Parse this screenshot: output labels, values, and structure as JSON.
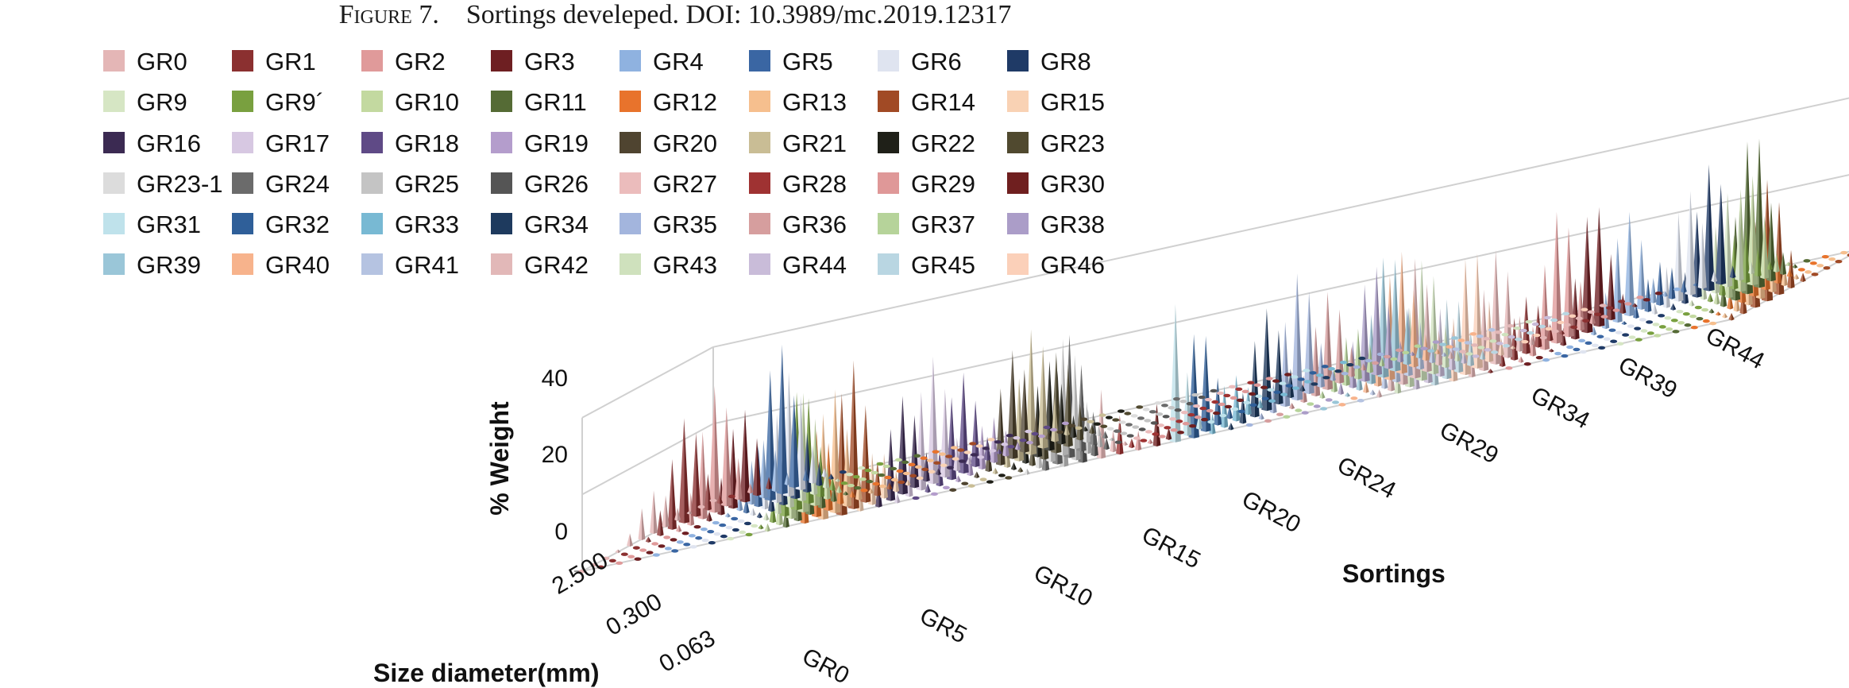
{
  "caption": {
    "figure_label": "Figure 7.",
    "text": "Sortings develeped. DOI: 10.3989/mc.2019.12317"
  },
  "chart_data": {
    "type": "bar3d",
    "title": "",
    "zlabel": "% Weight",
    "xlabel": "Sortings",
    "ylabel": "Size diameter(mm)",
    "zlim": [
      0,
      40
    ],
    "z_ticks": [
      "40",
      "20",
      "0"
    ],
    "size_ticks": [
      "2.500",
      "0.300",
      "0.063"
    ],
    "sorting_ticks": [
      "GR0",
      "GR5",
      "GR10",
      "GR15",
      "GR20",
      "GR24",
      "GR29",
      "GR34",
      "GR39",
      "GR44"
    ],
    "legend_placement": "top-left",
    "series": [
      {
        "name": "GR0",
        "color": "#e4b6b6"
      },
      {
        "name": "GR1",
        "color": "#8b3030"
      },
      {
        "name": "GR2",
        "color": "#e09a9a"
      },
      {
        "name": "GR3",
        "color": "#6e1f22"
      },
      {
        "name": "GR4",
        "color": "#8fb2e0"
      },
      {
        "name": "GR5",
        "color": "#3a66a3"
      },
      {
        "name": "GR6",
        "color": "#dfe4f0"
      },
      {
        "name": "GR8",
        "color": "#1f3a66"
      },
      {
        "name": "GR9",
        "color": "#d6e6c4"
      },
      {
        "name": "GR9´",
        "color": "#79a03f"
      },
      {
        "name": "GR10",
        "color": "#c3d9a0"
      },
      {
        "name": "GR11",
        "color": "#556b35"
      },
      {
        "name": "GR12",
        "color": "#e8732c"
      },
      {
        "name": "GR13",
        "color": "#f6bf8e"
      },
      {
        "name": "GR14",
        "color": "#a14a25"
      },
      {
        "name": "GR15",
        "color": "#f9d2b4"
      },
      {
        "name": "GR16",
        "color": "#3b2a52"
      },
      {
        "name": "GR17",
        "color": "#d7c8e2"
      },
      {
        "name": "GR18",
        "color": "#5f4a86"
      },
      {
        "name": "GR19",
        "color": "#b49dcc"
      },
      {
        "name": "GR20",
        "color": "#4f4430"
      },
      {
        "name": "GR21",
        "color": "#c9bd95"
      },
      {
        "name": "GR22",
        "color": "#1f2018"
      },
      {
        "name": "GR23",
        "color": "#50492f"
      },
      {
        "name": "GR23-1",
        "color": "#dcdcdc"
      },
      {
        "name": "GR24",
        "color": "#6b6b6b"
      },
      {
        "name": "GR25",
        "color": "#c4c4c4"
      },
      {
        "name": "GR26",
        "color": "#555555"
      },
      {
        "name": "GR27",
        "color": "#ebbcbc"
      },
      {
        "name": "GR28",
        "color": "#9f3232"
      },
      {
        "name": "GR29",
        "color": "#df9898"
      },
      {
        "name": "GR30",
        "color": "#6f1f1f"
      },
      {
        "name": "GR31",
        "color": "#bfe2eb"
      },
      {
        "name": "GR32",
        "color": "#2f5f99"
      },
      {
        "name": "GR33",
        "color": "#78b9d3"
      },
      {
        "name": "GR34",
        "color": "#1e3a5e"
      },
      {
        "name": "GR35",
        "color": "#a3b5dd"
      },
      {
        "name": "GR36",
        "color": "#d69e9e"
      },
      {
        "name": "GR37",
        "color": "#b6d39a"
      },
      {
        "name": "GR38",
        "color": "#ab9dc8"
      },
      {
        "name": "GR39",
        "color": "#9ac6d8"
      },
      {
        "name": "GR40",
        "color": "#f7b38c"
      },
      {
        "name": "GR41",
        "color": "#b5c3e1"
      },
      {
        "name": "GR42",
        "color": "#e2b8b8"
      },
      {
        "name": "GR43",
        "color": "#cfe1bd"
      },
      {
        "name": "GR44",
        "color": "#c9bcd9"
      },
      {
        "name": "GR45",
        "color": "#b9d6e2"
      },
      {
        "name": "GR46",
        "color": "#fbd0b9"
      }
    ]
  }
}
